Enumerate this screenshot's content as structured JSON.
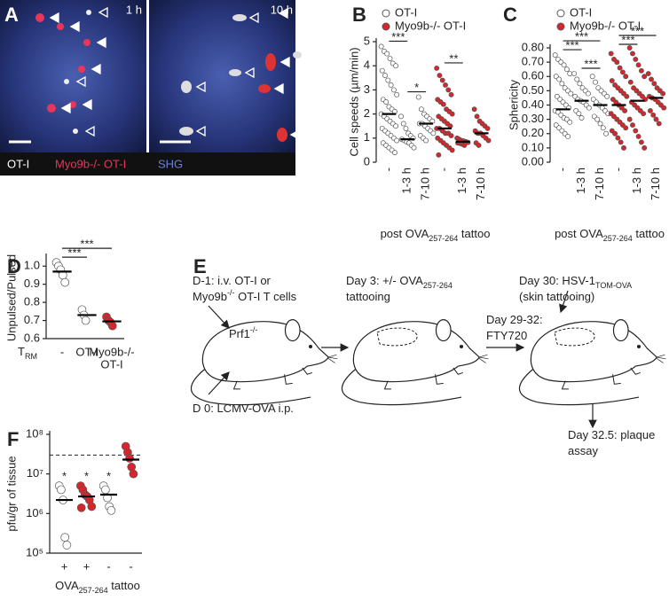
{
  "panel_a": {
    "label": "A",
    "time_1": "1 h",
    "time_2": "10 h",
    "legend": [
      "OT-I",
      "Myo9b-/- OT-I",
      "SHG"
    ]
  },
  "diagram_e": {
    "label": "E",
    "lines": [
      [
        {
          "text": "D-1: i.v. OT-I or"
        }
      ],
      [
        {
          "text": "Myo9b"
        },
        {
          "text": "-/-",
          "style": "sup"
        },
        {
          "text": " OT-I T cells"
        }
      ],
      [
        {
          "text": "Prf1"
        },
        {
          "text": "-/-",
          "style": "sup"
        }
      ],
      [
        {
          "text": "D 0: LCMV-OVA i.p."
        }
      ],
      [
        {
          "text": "Day 3: +/- OVA"
        },
        {
          "text": "257-264",
          "style": "sub"
        }
      ],
      [
        {
          "text": "tattooing"
        }
      ],
      [
        {
          "text": "Day 29-32:"
        }
      ],
      [
        {
          "text": "FTY720"
        }
      ],
      [
        {
          "text": "Day 30: HSV-1"
        },
        {
          "text": "TOM-OVA",
          "style": "sub"
        }
      ],
      [
        {
          "text": "(skin tattooing)"
        }
      ],
      [
        {
          "text": "Day 32.5: plaque"
        }
      ],
      [
        {
          "text": "assay"
        }
      ]
    ]
  },
  "chart_data": [
    {
      "type": "strip",
      "panel": "B",
      "ylabel": "Cell speeds (µm/min)",
      "xlabel": [
        {
          "text": "post OVA"
        },
        {
          "text": "257-264",
          "style": "sub"
        },
        {
          "text": " tattoo"
        }
      ],
      "legend": [
        {
          "name": "OT-I",
          "color": "#ffffff"
        },
        {
          "name": "Myo9b-/- OT-I",
          "color": "#d7262b"
        }
      ],
      "categories": [
        "-",
        "1-3 h",
        "7-10 h",
        "-",
        "1-3 h",
        "7-10 h"
      ],
      "groups": [
        {
          "color": "#ffffff",
          "median": 2.0,
          "points": [
            4.8,
            4.6,
            4.5,
            4.3,
            4.1,
            4.0,
            3.8,
            3.6,
            3.4,
            3.2,
            3.0,
            2.8,
            2.6,
            2.5,
            2.3,
            2.2,
            2.1,
            2.0,
            1.9,
            1.8,
            1.7,
            1.6,
            1.5,
            1.4,
            1.3,
            1.2,
            1.1,
            1.0,
            0.9,
            0.8,
            0.7,
            0.6,
            0.5,
            0.4
          ]
        },
        {
          "color": "#ffffff",
          "median": 0.95,
          "points": [
            1.9,
            1.6,
            1.4,
            1.2,
            1.1,
            1.0,
            0.95,
            0.9,
            0.85,
            0.8,
            0.7,
            0.6
          ]
        },
        {
          "color": "#ffffff",
          "median": 1.6,
          "points": [
            2.7,
            2.2,
            2.0,
            1.9,
            1.8,
            1.7,
            1.6,
            1.6,
            1.5,
            1.4,
            1.3,
            1.2,
            1.1,
            1.0,
            0.9
          ]
        },
        {
          "color": "#d7262b",
          "median": 1.4,
          "points": [
            3.9,
            3.6,
            3.4,
            3.2,
            3.0,
            2.8,
            2.6,
            2.5,
            2.4,
            2.2,
            2.1,
            2.0,
            1.9,
            1.8,
            1.7,
            1.6,
            1.5,
            1.4,
            1.4,
            1.3,
            1.2,
            1.2,
            1.1,
            1.0,
            0.9,
            0.8,
            0.7,
            0.6,
            0.5,
            0.3
          ]
        },
        {
          "color": "#d7262b",
          "median": 0.85,
          "points": [
            1.0,
            0.95,
            0.9,
            0.88,
            0.85,
            0.82,
            0.8,
            0.78,
            0.75,
            0.7
          ]
        },
        {
          "color": "#d7262b",
          "median": 1.2,
          "points": [
            2.2,
            1.9,
            1.7,
            1.6,
            1.5,
            1.4,
            1.3,
            1.2,
            1.2,
            1.1,
            1.0,
            0.9,
            0.8,
            0.7
          ]
        }
      ],
      "annotations": [
        {
          "text": "***",
          "from": 0,
          "to": 1
        },
        {
          "text": "*",
          "from": 1,
          "to": 2
        },
        {
          "text": "**",
          "from": 3,
          "to": 4
        }
      ],
      "ylim": [
        0,
        5
      ],
      "yticks": [
        0,
        1,
        2,
        3,
        4,
        5
      ]
    },
    {
      "type": "strip",
      "panel": "C",
      "ylabel": "Sphericity",
      "xlabel": [
        {
          "text": "post OVA"
        },
        {
          "text": "257-264",
          "style": "sub"
        },
        {
          "text": " tattoo"
        }
      ],
      "legend": [
        {
          "name": "OT-I",
          "color": "#ffffff"
        },
        {
          "name": "Myo9b-/- OT-I",
          "color": "#d7262b"
        }
      ],
      "categories": [
        "-",
        "1-3 h",
        "7-10 h",
        "-",
        "1-3 h",
        "7-10 h"
      ],
      "groups": [
        {
          "color": "#ffffff",
          "median": 0.37,
          "points": [
            0.75,
            0.72,
            0.7,
            0.68,
            0.65,
            0.62,
            0.6,
            0.58,
            0.55,
            0.52,
            0.5,
            0.48,
            0.46,
            0.44,
            0.42,
            0.4,
            0.38,
            0.36,
            0.35,
            0.33,
            0.31,
            0.3,
            0.28,
            0.26,
            0.24,
            0.22,
            0.2,
            0.18
          ]
        },
        {
          "color": "#ffffff",
          "median": 0.43,
          "points": [
            0.62,
            0.58,
            0.55,
            0.52,
            0.5,
            0.48,
            0.46,
            0.44,
            0.43,
            0.42,
            0.4,
            0.38,
            0.36,
            0.34,
            0.31
          ]
        },
        {
          "color": "#ffffff",
          "median": 0.4,
          "points": [
            0.6,
            0.56,
            0.52,
            0.5,
            0.48,
            0.46,
            0.44,
            0.42,
            0.4,
            0.38,
            0.36,
            0.34,
            0.32,
            0.3,
            0.27,
            0.24,
            0.2
          ]
        },
        {
          "color": "#d7262b",
          "median": 0.4,
          "points": [
            0.76,
            0.72,
            0.7,
            0.66,
            0.63,
            0.6,
            0.57,
            0.54,
            0.52,
            0.5,
            0.48,
            0.46,
            0.44,
            0.42,
            0.4,
            0.38,
            0.36,
            0.34,
            0.32,
            0.3,
            0.28,
            0.26,
            0.24,
            0.22,
            0.2,
            0.17,
            0.14,
            0.1
          ]
        },
        {
          "color": "#d7262b",
          "median": 0.43,
          "points": [
            0.8,
            0.76,
            0.72,
            0.68,
            0.64,
            0.6,
            0.56,
            0.52,
            0.5,
            0.48,
            0.46,
            0.44,
            0.42,
            0.4,
            0.38,
            0.36,
            0.34,
            0.3,
            0.26,
            0.22,
            0.18,
            0.14,
            0.1
          ]
        },
        {
          "color": "#d7262b",
          "median": 0.45,
          "points": [
            0.62,
            0.58,
            0.55,
            0.52,
            0.5,
            0.48,
            0.46,
            0.45,
            0.44,
            0.42,
            0.4,
            0.38,
            0.36,
            0.33,
            0.3,
            0.27
          ]
        }
      ],
      "annotations": [
        {
          "text": "***",
          "from": 0,
          "to": 1
        },
        {
          "text": "***",
          "from": 1,
          "to": 2
        },
        {
          "text": "***",
          "from": 0,
          "to": 2
        },
        {
          "text": "***",
          "from": 3,
          "to": 4
        },
        {
          "text": "***",
          "from": 3,
          "to": 5
        }
      ],
      "ylim": [
        0,
        0.8
      ],
      "yticks": [
        {
          "value": 0,
          "label": "0.00"
        },
        {
          "value": 0.1,
          "label": "0.10"
        },
        {
          "value": 0.2,
          "label": "0.20"
        },
        {
          "value": 0.3,
          "label": "0.30"
        },
        {
          "value": 0.4,
          "label": "0.40"
        },
        {
          "value": 0.5,
          "label": "0.50"
        },
        {
          "value": 0.6,
          "label": "0.60"
        },
        {
          "value": 0.7,
          "label": "0.70"
        },
        {
          "value": 0.8,
          "label": "0.80"
        }
      ]
    },
    {
      "type": "strip",
      "panel": "D",
      "ylabel": "Unpulsed/Pulsed",
      "group_label": [
        {
          "text": "T"
        },
        {
          "text": "RM",
          "style": "sub"
        }
      ],
      "categories": [
        [
          "-"
        ],
        [
          "OT-I"
        ],
        [
          "Myo9b-/-",
          "OT-I"
        ]
      ],
      "groups": [
        {
          "color": "#ffffff",
          "median": 0.97,
          "points": [
            1.02,
            1.0,
            0.98,
            0.95,
            0.91
          ]
        },
        {
          "color": "#ffffff",
          "median": 0.73,
          "points": [
            0.76,
            0.73,
            0.7
          ]
        },
        {
          "color": "#d7262b",
          "median": 0.695,
          "points": [
            0.72,
            0.7,
            0.69,
            0.67
          ]
        }
      ],
      "annotations": [
        {
          "text": "***",
          "from": 0,
          "to": 1
        },
        {
          "text": "***",
          "from": 0,
          "to": 2
        }
      ],
      "ylim": [
        0.6,
        1.05
      ],
      "yticks": [
        0.6,
        0.7,
        0.8,
        0.9,
        {
          "value": 1,
          "label": "1.0"
        }
      ]
    },
    {
      "type": "strip",
      "panel": "F",
      "ylabel": "pfu/gr of tissue",
      "log": true,
      "xlabel": [
        {
          "text": "OVA"
        },
        {
          "text": "257-264",
          "style": "sub"
        },
        {
          "text": " tattoo"
        }
      ],
      "categories": [
        [
          "+"
        ],
        [
          "+"
        ],
        [
          "-"
        ],
        [
          "-"
        ]
      ],
      "groups": [
        {
          "color": "#ffffff",
          "median": 2200000,
          "points": [
            5000000,
            4000000,
            2200000,
            250000,
            160000
          ]
        },
        {
          "color": "#d7262b",
          "median": 2700000,
          "points": [
            5000000,
            4000000,
            3000000,
            2700000,
            2200000,
            1500000,
            1400000
          ]
        },
        {
          "color": "#ffffff",
          "median": 3000000,
          "points": [
            5000000,
            4000000,
            2500000,
            1500000,
            1200000
          ]
        },
        {
          "color": "#d7262b",
          "median": 23000000,
          "points": [
            50000000,
            35000000,
            25000000,
            15000000,
            10000000
          ]
        }
      ],
      "annotations": [
        {
          "text": "*",
          "from": 0,
          "to": 0
        },
        {
          "text": "*",
          "from": 1,
          "to": 1
        },
        {
          "text": "*",
          "from": 2,
          "to": 2
        }
      ],
      "hline": 30000000,
      "ylim": [
        100000,
        100000000
      ],
      "yticks": [
        {
          "value": 100000,
          "label": "10⁵"
        },
        {
          "value": 1000000,
          "label": "10⁶"
        },
        {
          "value": 10000000,
          "label": "10⁷"
        },
        {
          "value": 100000000,
          "label": "10⁸"
        }
      ]
    }
  ]
}
